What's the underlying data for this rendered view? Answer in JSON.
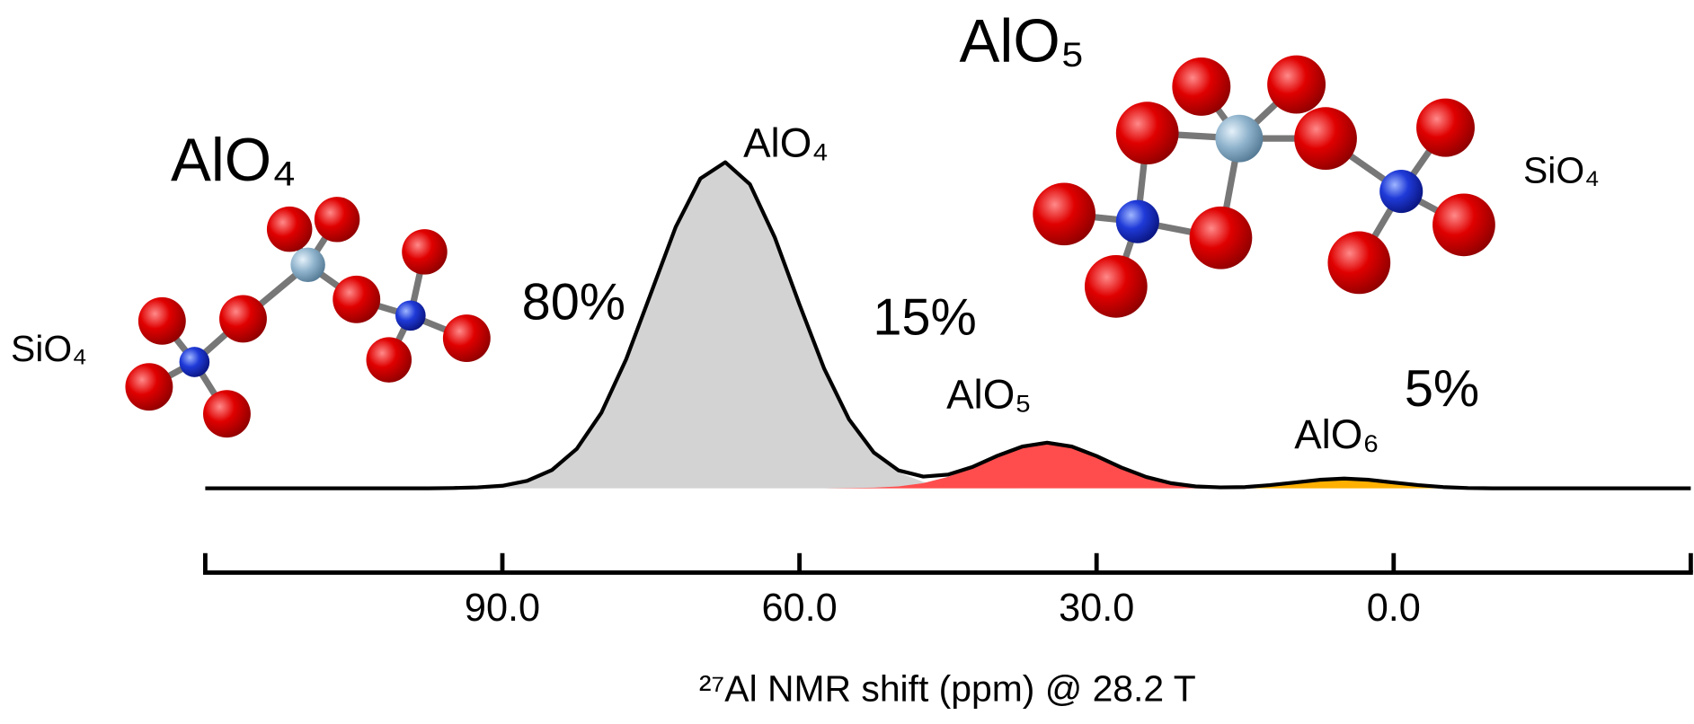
{
  "chart_data": {
    "type": "area",
    "x_label": "²⁷Al NMR shift (ppm) @ 28.2 T",
    "x": [
      120,
      117.5,
      115,
      112.5,
      110,
      107.5,
      105,
      102.5,
      100,
      97.5,
      95,
      92.5,
      90,
      87.5,
      85,
      82.5,
      80,
      77.5,
      75,
      72.5,
      70,
      67.5,
      65,
      62.5,
      60,
      57.5,
      55,
      52.5,
      50,
      47.5,
      45,
      42.5,
      40,
      37.5,
      35,
      32.5,
      30,
      27.5,
      25,
      22.5,
      20,
      17.5,
      15,
      12.5,
      10,
      7.5,
      5,
      2.5,
      0,
      -2.5,
      -5,
      -7.5,
      -10,
      -12.5,
      -15,
      -17.5,
      -20,
      -22.5,
      -25,
      -27.5,
      -30
    ],
    "xlim": [
      120,
      -30
    ],
    "xticks": [
      {
        "value": 90,
        "label": "90.0"
      },
      {
        "value": 60,
        "label": "60.0"
      },
      {
        "value": 30,
        "label": "30.0"
      },
      {
        "value": 0,
        "label": "0.0"
      }
    ],
    "ylim": [
      0,
      100
    ],
    "series": [
      {
        "name": "AlO₄",
        "label": "80%",
        "color": "#d3d3d3",
        "values": [
          0,
          0,
          0,
          0,
          0,
          0,
          0,
          0,
          0,
          0,
          0.1,
          0.3,
          0.8,
          2.3,
          5.6,
          12.1,
          23.2,
          39.6,
          59.8,
          80.1,
          95.0,
          100.0,
          93.2,
          77.0,
          56.4,
          36.7,
          21.1,
          10.8,
          4.9,
          2.0,
          0.7,
          0.2,
          0.1,
          0,
          0,
          0,
          0,
          0,
          0,
          0,
          0,
          0,
          0,
          0,
          0,
          0,
          0,
          0,
          0,
          0,
          0,
          0,
          0,
          0,
          0,
          0,
          0,
          0,
          0,
          0,
          0
        ]
      },
      {
        "name": "AlO₅",
        "label": "15%",
        "color": "#ff4d4d",
        "values": [
          0,
          0,
          0,
          0,
          0,
          0,
          0,
          0,
          0,
          0,
          0,
          0,
          0,
          0,
          0,
          0,
          0,
          0,
          0,
          0,
          0,
          0,
          0,
          0,
          0,
          0,
          0.1,
          0.2,
          0.6,
          1.6,
          3.5,
          6.4,
          9.9,
          12.8,
          14.0,
          12.8,
          9.9,
          6.4,
          3.5,
          1.6,
          0.6,
          0.2,
          0,
          0,
          0,
          0,
          0,
          0,
          0,
          0,
          0,
          0,
          0,
          0,
          0,
          0,
          0,
          0,
          0,
          0,
          0
        ]
      },
      {
        "name": "AlO₆",
        "label": "5%",
        "color": "#ffb000",
        "values": [
          0,
          0,
          0,
          0,
          0,
          0,
          0,
          0,
          0,
          0,
          0,
          0,
          0,
          0,
          0,
          0,
          0,
          0,
          0,
          0,
          0,
          0,
          0,
          0,
          0,
          0,
          0,
          0,
          0,
          0,
          0,
          0,
          0,
          0,
          0,
          0,
          0,
          0,
          0,
          0,
          0,
          0.1,
          0.4,
          1.0,
          1.8,
          2.6,
          3.0,
          2.6,
          1.8,
          1.0,
          0.4,
          0.1,
          0,
          0,
          0,
          0,
          0,
          0,
          0,
          0,
          0
        ]
      }
    ],
    "envelope": {
      "color": "#000000",
      "values": [
        0,
        0,
        0,
        0,
        0,
        0,
        0,
        0,
        0,
        0,
        0.1,
        0.3,
        0.8,
        2.3,
        5.6,
        12.1,
        23.2,
        39.6,
        59.8,
        80.1,
        95.0,
        100.0,
        93.2,
        77.0,
        56.4,
        36.7,
        21.2,
        11.0,
        5.5,
        3.6,
        4.2,
        6.6,
        10.0,
        12.8,
        14.0,
        12.8,
        9.9,
        6.4,
        3.5,
        1.6,
        0.6,
        0.3,
        0.4,
        1.0,
        1.8,
        2.6,
        3.0,
        2.6,
        1.8,
        1.0,
        0.4,
        0.1,
        0,
        0,
        0,
        0,
        0,
        0,
        0,
        0,
        0
      ]
    },
    "molecules": [
      {
        "label": "AlO₄",
        "site_label": "SiO₄"
      },
      {
        "label": "AlO₅",
        "site_label": "SiO₄"
      }
    ]
  }
}
